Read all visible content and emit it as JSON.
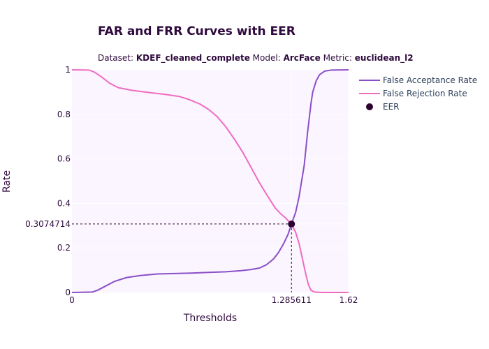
{
  "chart_data": {
    "type": "line",
    "title": "FAR and FRR Curves with EER",
    "subtitle": {
      "dataset_label": "Dataset:",
      "dataset": "KDEF_cleaned_complete",
      "model_label": "Model:",
      "model": "ArcFace",
      "metric_label": "Metric:",
      "metric": "euclidean_l2"
    },
    "xlabel": "Thresholds",
    "ylabel": "Rate",
    "xlim": [
      0,
      1.62
    ],
    "ylim": [
      0,
      1
    ],
    "x_ticks": [
      {
        "value": 0,
        "label": "0"
      },
      {
        "value": 1.285611,
        "label": "1.285611"
      },
      {
        "value": 1.62,
        "label": "1.62"
      }
    ],
    "y_ticks": [
      {
        "value": 0,
        "label": "0"
      },
      {
        "value": 0.2,
        "label": "0.2"
      },
      {
        "value": 0.3074714,
        "label": "0.3074714"
      },
      {
        "value": 0.4,
        "label": "0.4"
      },
      {
        "value": 0.6,
        "label": "0.6"
      },
      {
        "value": 0.8,
        "label": "0.8"
      },
      {
        "value": 1,
        "label": "1"
      }
    ],
    "grid": true,
    "legend_position": "top-right",
    "background": "#faf5ff",
    "series": [
      {
        "name": "False Acceptance Rate",
        "color": "#8a4fc7",
        "points": [
          [
            0,
            0
          ],
          [
            0.12,
            0.002
          ],
          [
            0.15,
            0.01
          ],
          [
            0.2,
            0.03
          ],
          [
            0.25,
            0.05
          ],
          [
            0.32,
            0.067
          ],
          [
            0.4,
            0.076
          ],
          [
            0.5,
            0.083
          ],
          [
            0.6,
            0.085
          ],
          [
            0.7,
            0.087
          ],
          [
            0.8,
            0.09
          ],
          [
            0.9,
            0.093
          ],
          [
            0.98,
            0.097
          ],
          [
            1.05,
            0.103
          ],
          [
            1.1,
            0.11
          ],
          [
            1.14,
            0.125
          ],
          [
            1.18,
            0.15
          ],
          [
            1.21,
            0.18
          ],
          [
            1.24,
            0.22
          ],
          [
            1.265,
            0.26
          ],
          [
            1.285611,
            0.3074714
          ],
          [
            1.31,
            0.36
          ],
          [
            1.33,
            0.43
          ],
          [
            1.36,
            0.57
          ],
          [
            1.38,
            0.72
          ],
          [
            1.4,
            0.85
          ],
          [
            1.41,
            0.9
          ],
          [
            1.43,
            0.95
          ],
          [
            1.45,
            0.978
          ],
          [
            1.48,
            0.994
          ],
          [
            1.52,
            0.999
          ],
          [
            1.62,
            1
          ]
        ]
      },
      {
        "name": "False Rejection Rate",
        "color": "#f06cc1",
        "points": [
          [
            0,
            1
          ],
          [
            0.1,
            0.999
          ],
          [
            0.13,
            0.99
          ],
          [
            0.17,
            0.97
          ],
          [
            0.22,
            0.94
          ],
          [
            0.27,
            0.92
          ],
          [
            0.35,
            0.908
          ],
          [
            0.45,
            0.898
          ],
          [
            0.55,
            0.889
          ],
          [
            0.63,
            0.88
          ],
          [
            0.68,
            0.868
          ],
          [
            0.75,
            0.846
          ],
          [
            0.8,
            0.822
          ],
          [
            0.85,
            0.79
          ],
          [
            0.9,
            0.745
          ],
          [
            0.95,
            0.69
          ],
          [
            1.0,
            0.63
          ],
          [
            1.05,
            0.56
          ],
          [
            1.1,
            0.49
          ],
          [
            1.14,
            0.44
          ],
          [
            1.19,
            0.38
          ],
          [
            1.22,
            0.355
          ],
          [
            1.25,
            0.335
          ],
          [
            1.285611,
            0.3074714
          ],
          [
            1.31,
            0.27
          ],
          [
            1.33,
            0.22
          ],
          [
            1.35,
            0.15
          ],
          [
            1.37,
            0.08
          ],
          [
            1.385,
            0.035
          ],
          [
            1.4,
            0.01
          ],
          [
            1.42,
            0.002
          ],
          [
            1.46,
            0
          ],
          [
            1.62,
            0
          ]
        ]
      }
    ],
    "eer": {
      "name": "EER",
      "x": 1.285611,
      "y": 0.3074714,
      "color": "#2e0030"
    }
  }
}
